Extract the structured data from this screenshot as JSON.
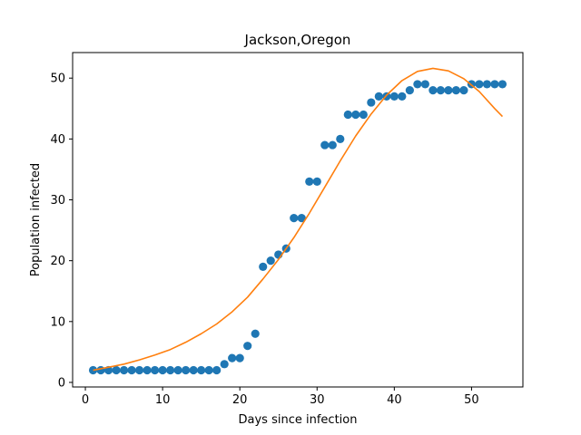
{
  "chart_data": {
    "type": "scatter",
    "title": "Jackson,Oregon",
    "xlabel": "Days since infection",
    "ylabel": "Population infected",
    "xlim": [
      -1.65,
      56.65
    ],
    "ylim": [
      -0.75,
      54.2
    ],
    "xticks": [
      0,
      10,
      20,
      30,
      40,
      50
    ],
    "yticks": [
      0,
      10,
      20,
      30,
      40,
      50
    ],
    "grid": false,
    "series": [
      {
        "kind": "scatter",
        "color": "#1f77b4",
        "x": [
          1,
          2,
          3,
          4,
          5,
          6,
          7,
          8,
          9,
          10,
          11,
          12,
          13,
          14,
          15,
          16,
          17,
          18,
          19,
          20,
          21,
          22,
          23,
          24,
          25,
          26,
          27,
          28,
          29,
          30,
          31,
          32,
          33,
          34,
          35,
          36,
          37,
          38,
          39,
          40,
          41,
          42,
          43,
          44,
          45,
          46,
          47,
          48,
          49,
          50,
          51,
          52,
          53,
          54
        ],
        "y": [
          2,
          2,
          2,
          2,
          2,
          2,
          2,
          2,
          2,
          2,
          2,
          2,
          2,
          2,
          2,
          2,
          2,
          3,
          4,
          4,
          6,
          8,
          19,
          20,
          21,
          22,
          27,
          27,
          33,
          33,
          39,
          39,
          40,
          44,
          44,
          44,
          46,
          47,
          47,
          47,
          47,
          48,
          49,
          49,
          48,
          48,
          48,
          48,
          48,
          49,
          49,
          49,
          49,
          49
        ]
      },
      {
        "kind": "line",
        "color": "#ff7f0e",
        "x": [
          1,
          3,
          5,
          7,
          9,
          11,
          13,
          15,
          17,
          19,
          21,
          23,
          25,
          27,
          29,
          31,
          33,
          35,
          37,
          39,
          41,
          43,
          45,
          47,
          49,
          51,
          53,
          54
        ],
        "y": [
          2.0,
          2.5,
          3.0,
          3.7,
          4.5,
          5.4,
          6.6,
          8.0,
          9.6,
          11.6,
          14.0,
          17.0,
          20.2,
          23.8,
          27.8,
          32.1,
          36.4,
          40.5,
          44.1,
          47.2,
          49.6,
          51.1,
          51.6,
          51.2,
          49.9,
          47.8,
          45.0,
          43.7
        ]
      }
    ]
  }
}
